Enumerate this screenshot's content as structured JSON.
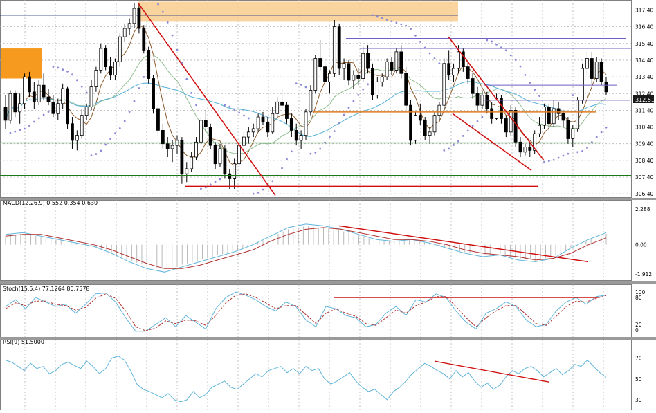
{
  "chart_data": [
    {
      "type": "candlestick",
      "title": "",
      "ylim": [
        306.2,
        318.0
      ],
      "y_ticks": [
        "317.40",
        "316.40",
        "315.40",
        "314.40",
        "313.40",
        "312.40",
        "311.40",
        "310.40",
        "309.40",
        "308.40",
        "307.40",
        "306.40"
      ],
      "last_price_label": "312.51",
      "grid": true,
      "colors": {
        "up": "#ffffff",
        "down": "#000000",
        "ma_fast": "#8b5a2b",
        "ma_mid": "#8fbc8f",
        "ma_slow": "#5fb4d9",
        "parabolic_sar": "#8a8ad8"
      },
      "candles": [
        [
          311.6,
          312.3,
          310.3,
          310.8
        ],
        [
          310.8,
          312.6,
          310.6,
          312.4
        ],
        [
          312.4,
          312.6,
          311.0,
          311.3
        ],
        [
          311.3,
          312.4,
          310.6,
          311.8
        ],
        [
          311.8,
          313.6,
          311.5,
          313.4
        ],
        [
          313.4,
          313.7,
          312.2,
          312.5
        ],
        [
          312.5,
          313.1,
          311.5,
          311.9
        ],
        [
          311.9,
          313.2,
          311.7,
          312.9
        ],
        [
          312.9,
          313.6,
          312.0,
          312.2
        ],
        [
          312.2,
          312.7,
          311.7,
          311.9
        ],
        [
          311.9,
          312.3,
          311.0,
          311.2
        ],
        [
          311.2,
          312.1,
          310.8,
          311.8
        ],
        [
          311.8,
          313.0,
          311.5,
          312.7
        ],
        [
          312.7,
          312.8,
          310.3,
          310.6
        ],
        [
          310.6,
          311.0,
          309.1,
          309.6
        ],
        [
          309.6,
          310.2,
          309.0,
          309.9
        ],
        [
          309.9,
          311.5,
          309.7,
          311.1
        ],
        [
          311.1,
          311.8,
          310.8,
          311.6
        ],
        [
          311.6,
          313.2,
          311.4,
          312.8
        ],
        [
          312.8,
          314.0,
          312.5,
          313.8
        ],
        [
          313.8,
          315.4,
          313.6,
          315.1
        ],
        [
          315.1,
          315.3,
          313.8,
          314.0
        ],
        [
          314.0,
          314.6,
          313.2,
          313.5
        ],
        [
          313.5,
          314.5,
          313.2,
          314.3
        ],
        [
          314.3,
          316.0,
          314.0,
          315.8
        ],
        [
          315.8,
          316.6,
          315.5,
          316.3
        ],
        [
          316.3,
          316.9,
          315.9,
          316.6
        ],
        [
          316.6,
          317.8,
          316.3,
          317.5
        ],
        [
          317.5,
          317.8,
          316.0,
          316.3
        ],
        [
          316.3,
          316.5,
          314.8,
          315.0
        ],
        [
          315.0,
          315.2,
          313.0,
          313.3
        ],
        [
          313.3,
          313.5,
          311.2,
          311.5
        ],
        [
          311.5,
          311.8,
          309.9,
          310.2
        ],
        [
          310.2,
          310.6,
          309.1,
          309.4
        ],
        [
          309.4,
          309.8,
          308.6,
          309.1
        ],
        [
          309.1,
          309.6,
          308.3,
          309.3
        ],
        [
          309.3,
          309.9,
          308.8,
          309.6
        ],
        [
          309.6,
          309.8,
          307.0,
          307.6
        ],
        [
          307.6,
          308.3,
          307.1,
          307.9
        ],
        [
          307.9,
          308.9,
          307.7,
          308.6
        ],
        [
          308.6,
          309.8,
          308.4,
          309.5
        ],
        [
          309.5,
          311.0,
          309.3,
          310.8
        ],
        [
          310.8,
          311.4,
          310.1,
          310.4
        ],
        [
          310.4,
          310.6,
          309.1,
          309.3
        ],
        [
          309.3,
          309.5,
          307.9,
          308.2
        ],
        [
          308.2,
          309.4,
          308.0,
          309.1
        ],
        [
          309.1,
          309.3,
          307.3,
          307.6
        ],
        [
          307.6,
          307.9,
          306.7,
          307.3
        ],
        [
          307.3,
          308.5,
          306.7,
          308.2
        ],
        [
          308.2,
          309.6,
          308.0,
          309.3
        ],
        [
          309.3,
          310.1,
          309.0,
          309.8
        ],
        [
          309.8,
          310.4,
          309.4,
          310.1
        ],
        [
          310.1,
          310.6,
          309.8,
          310.3
        ],
        [
          310.3,
          311.2,
          310.1,
          311.0
        ],
        [
          311.0,
          311.3,
          310.5,
          310.7
        ],
        [
          310.7,
          311.0,
          309.8,
          310.1
        ],
        [
          310.1,
          311.6,
          310.0,
          311.2
        ],
        [
          311.2,
          312.2,
          311.0,
          311.9
        ],
        [
          311.9,
          312.7,
          311.5,
          311.7
        ],
        [
          311.7,
          311.9,
          310.6,
          310.9
        ],
        [
          310.9,
          311.2,
          309.8,
          310.2
        ],
        [
          310.2,
          310.6,
          309.3,
          309.6
        ],
        [
          309.6,
          310.2,
          309.1,
          309.9
        ],
        [
          309.9,
          311.5,
          309.6,
          311.3
        ],
        [
          311.3,
          312.9,
          311.1,
          312.6
        ],
        [
          312.6,
          314.7,
          312.4,
          314.5
        ],
        [
          314.5,
          315.6,
          313.8,
          314.0
        ],
        [
          314.0,
          314.3,
          312.8,
          313.1
        ],
        [
          313.1,
          313.8,
          312.4,
          313.6
        ],
        [
          313.6,
          316.8,
          313.4,
          316.4
        ],
        [
          316.4,
          316.6,
          313.5,
          313.9
        ],
        [
          313.9,
          314.5,
          313.2,
          314.2
        ],
        [
          314.2,
          314.4,
          312.9,
          313.2
        ],
        [
          313.2,
          313.8,
          312.7,
          313.5
        ],
        [
          313.5,
          313.9,
          312.9,
          313.3
        ],
        [
          313.3,
          315.2,
          313.1,
          314.8
        ],
        [
          314.8,
          315.3,
          313.6,
          313.9
        ],
        [
          313.9,
          314.2,
          312.0,
          312.3
        ],
        [
          312.3,
          313.4,
          312.1,
          313.1
        ],
        [
          313.1,
          313.6,
          312.8,
          313.4
        ],
        [
          313.4,
          314.5,
          313.2,
          314.3
        ],
        [
          314.3,
          314.6,
          313.5,
          313.8
        ],
        [
          313.8,
          315.1,
          313.6,
          314.9
        ],
        [
          314.9,
          315.3,
          313.3,
          313.6
        ],
        [
          313.6,
          314.0,
          311.4,
          311.7
        ],
        [
          311.7,
          312.0,
          309.3,
          309.6
        ],
        [
          309.6,
          311.3,
          309.4,
          311.1
        ],
        [
          311.1,
          311.8,
          310.5,
          310.8
        ],
        [
          310.8,
          311.0,
          309.6,
          309.9
        ],
        [
          309.9,
          310.4,
          309.4,
          310.1
        ],
        [
          310.1,
          311.3,
          309.9,
          311.1
        ],
        [
          311.1,
          311.9,
          310.8,
          311.7
        ],
        [
          311.7,
          314.5,
          311.5,
          314.2
        ],
        [
          314.2,
          315.0,
          313.2,
          313.5
        ],
        [
          313.5,
          314.2,
          313.1,
          313.9
        ],
        [
          313.9,
          315.3,
          313.6,
          314.9
        ],
        [
          314.9,
          315.1,
          313.7,
          314.0
        ],
        [
          314.0,
          314.3,
          313.0,
          313.3
        ],
        [
          313.3,
          313.6,
          312.1,
          312.4
        ],
        [
          312.4,
          312.8,
          311.4,
          311.7
        ],
        [
          311.7,
          312.6,
          311.5,
          312.3
        ],
        [
          312.3,
          312.5,
          311.2,
          311.5
        ],
        [
          311.5,
          311.9,
          310.6,
          310.9
        ],
        [
          310.9,
          312.4,
          310.8,
          312.1
        ],
        [
          312.1,
          312.3,
          310.6,
          310.9
        ],
        [
          310.9,
          311.1,
          309.8,
          310.1
        ],
        [
          310.1,
          311.7,
          309.9,
          311.4
        ],
        [
          311.4,
          311.6,
          309.2,
          309.5
        ],
        [
          309.5,
          309.8,
          308.6,
          308.9
        ],
        [
          308.9,
          309.4,
          308.7,
          309.2
        ],
        [
          309.2,
          309.5,
          308.6,
          309.0
        ],
        [
          309.0,
          310.2,
          308.8,
          310.0
        ],
        [
          310.0,
          311.0,
          309.8,
          310.5
        ],
        [
          310.5,
          311.8,
          310.3,
          311.6
        ],
        [
          311.6,
          311.8,
          310.2,
          310.6
        ],
        [
          310.6,
          312.0,
          310.4,
          311.5
        ],
        [
          311.5,
          311.9,
          310.8,
          311.2
        ],
        [
          311.2,
          311.4,
          310.4,
          310.8
        ],
        [
          310.8,
          311.0,
          309.4,
          309.7
        ],
        [
          309.7,
          310.5,
          309.2,
          310.3
        ],
        [
          310.3,
          312.2,
          310.1,
          312.0
        ],
        [
          312.0,
          314.2,
          311.8,
          313.9
        ],
        [
          313.9,
          315.0,
          313.5,
          314.5
        ],
        [
          314.5,
          314.9,
          313.0,
          313.3
        ],
        [
          313.3,
          314.6,
          313.1,
          314.3
        ],
        [
          314.3,
          314.5,
          312.9,
          313.1
        ],
        [
          313.1,
          313.4,
          312.3,
          312.5
        ]
      ],
      "annotations": {
        "supply_zone": [
          315.4,
          317.4
        ],
        "horizontal_lines": [
          309.45,
          307.5
        ],
        "trend_lines": 3
      }
    },
    {
      "type": "line",
      "title": "MACD(12,26,9) 0.552 0.354 0.630",
      "ylim": [
        -1.912,
        2.288
      ],
      "y_ticks": [
        "2.288",
        "0.00",
        "-1.912"
      ],
      "series": [
        {
          "name": "MACD",
          "values": [
            0.6,
            0.7,
            0.5,
            0.3,
            0.1,
            -0.1,
            -0.5,
            -1.0,
            -1.4,
            -1.6,
            -1.3,
            -1.0,
            -0.7,
            -0.4,
            0.0,
            0.5,
            1.0,
            1.2,
            1.1,
            0.9,
            0.6,
            0.3,
            0.2,
            0.3,
            0.1,
            -0.2,
            -0.5,
            -0.7,
            -0.6,
            -0.9,
            -1.0,
            -0.8,
            -0.2,
            0.3,
            0.7
          ]
        },
        {
          "name": "Signal",
          "values": [
            0.5,
            0.6,
            0.6,
            0.4,
            0.2,
            0.0,
            -0.3,
            -0.7,
            -1.1,
            -1.4,
            -1.4,
            -1.2,
            -0.9,
            -0.6,
            -0.3,
            0.2,
            0.6,
            0.9,
            1.0,
            0.9,
            0.7,
            0.5,
            0.3,
            0.3,
            0.2,
            0.0,
            -0.3,
            -0.5,
            -0.6,
            -0.7,
            -0.9,
            -0.8,
            -0.5,
            0.0,
            0.4
          ]
        }
      ]
    },
    {
      "type": "line",
      "title": "Stoch(15,5,4) 77.1264 80.7578",
      "ylim": [
        0,
        100
      ],
      "y_ticks": [
        "100",
        "80",
        "20",
        "0"
      ],
      "series": [
        {
          "name": "%K",
          "values": [
            60,
            75,
            55,
            80,
            70,
            60,
            65,
            45,
            65,
            88,
            90,
            70,
            35,
            5,
            5,
            20,
            35,
            15,
            40,
            25,
            10,
            55,
            80,
            92,
            85,
            75,
            60,
            50,
            70,
            60,
            30,
            15,
            60,
            55,
            40,
            35,
            15,
            20,
            45,
            60,
            40,
            75,
            70,
            88,
            80,
            50,
            25,
            10,
            45,
            55,
            70,
            60,
            30,
            15,
            20,
            50,
            70,
            80,
            65,
            82,
            85
          ]
        },
        {
          "name": "%D",
          "values": [
            55,
            68,
            62,
            72,
            72,
            65,
            62,
            52,
            58,
            78,
            88,
            78,
            50,
            15,
            6,
            12,
            28,
            22,
            30,
            28,
            18,
            40,
            68,
            85,
            88,
            80,
            68,
            55,
            62,
            62,
            42,
            22,
            45,
            55,
            45,
            38,
            22,
            18,
            35,
            52,
            45,
            62,
            70,
            82,
            82,
            60,
            35,
            15,
            35,
            50,
            62,
            62,
            42,
            22,
            18,
            38,
            60,
            72,
            70,
            78,
            84
          ]
        }
      ],
      "level_line": 80
    },
    {
      "type": "line",
      "title": "RSI(9) 51.5000",
      "ylim": [
        20,
        85
      ],
      "y_ticks": [
        "70",
        "50",
        "30"
      ],
      "series": [
        {
          "name": "RSI",
          "values": [
            68,
            66,
            62,
            58,
            65,
            60,
            62,
            55,
            58,
            64,
            66,
            63,
            60,
            67,
            62,
            55,
            60,
            70,
            72,
            68,
            58,
            45,
            40,
            38,
            35,
            32,
            36,
            30,
            28,
            30,
            38,
            32,
            35,
            42,
            45,
            48,
            42,
            40,
            45,
            50,
            55,
            52,
            58,
            60,
            62,
            56,
            60,
            55,
            62,
            58,
            60,
            50,
            45,
            48,
            52,
            56,
            48,
            42,
            38,
            40,
            35,
            30,
            38,
            42,
            48,
            55,
            60,
            65,
            62,
            58,
            55,
            50,
            58,
            52,
            56,
            48,
            42,
            46,
            40,
            44,
            52,
            58,
            55,
            60,
            62,
            58,
            52,
            56,
            60,
            54,
            58,
            64,
            62,
            68,
            62,
            56,
            51.5
          ]
        }
      ]
    }
  ]
}
